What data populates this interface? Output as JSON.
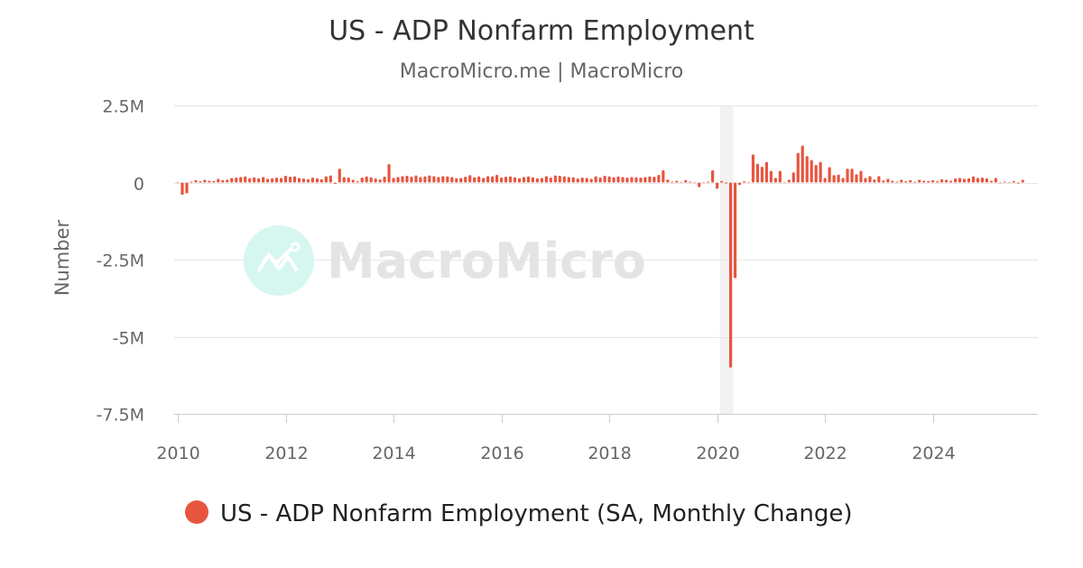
{
  "chart_data": {
    "type": "bar",
    "title": "US - ADP Nonfarm Employment",
    "subtitle": "MacroMicro.me | MacroMicro",
    "ylabel": "Number",
    "xlabel": "",
    "ylim": [
      -7500000,
      2500000
    ],
    "y_ticks": [
      {
        "value": 2500000,
        "label": "2.5M"
      },
      {
        "value": 0,
        "label": "0"
      },
      {
        "value": -2500000,
        "label": "-2.5M"
      },
      {
        "value": -5000000,
        "label": "-5M"
      },
      {
        "value": -7500000,
        "label": "-7.5M"
      }
    ],
    "x_ticks": [
      "2010",
      "2012",
      "2014",
      "2016",
      "2018",
      "2020",
      "2022",
      "2024"
    ],
    "grid": true,
    "legend_placement": "bottom",
    "shaded_period": {
      "start": "2020-02",
      "end": "2020-04"
    },
    "unit_of_values": "thousands",
    "series": [
      {
        "name": "US - ADP Nonfarm Employment (SA, Monthly Change)",
        "color": "#e8553f",
        "monthly_values_by_year": {
          "2010": [
            20,
            -400,
            -350,
            30,
            80,
            40,
            90,
            60,
            50,
            120,
            80,
            90
          ],
          "2011": [
            150,
            160,
            180,
            200,
            140,
            170,
            140,
            180,
            120,
            140,
            160,
            150
          ],
          "2012": [
            220,
            190,
            200,
            150,
            130,
            110,
            160,
            140,
            110,
            200,
            230,
            -40
          ],
          "2013": [
            450,
            180,
            160,
            90,
            40,
            160,
            200,
            170,
            130,
            100,
            190,
            600
          ],
          "2014": [
            150,
            180,
            210,
            220,
            190,
            230,
            180,
            200,
            230,
            210,
            180,
            210
          ],
          "2015": [
            200,
            180,
            140,
            150,
            190,
            240,
            170,
            200,
            150,
            210,
            200,
            250
          ],
          "2016": [
            160,
            190,
            200,
            170,
            140,
            180,
            200,
            170,
            140,
            150,
            210,
            160
          ],
          "2017": [
            230,
            220,
            200,
            180,
            170,
            130,
            160,
            150,
            120,
            200,
            160,
            220
          ],
          "2018": [
            200,
            170,
            200,
            180,
            160,
            180,
            170,
            160,
            180,
            200,
            190,
            250
          ],
          "2019": [
            400,
            100,
            30,
            60,
            20,
            80,
            30,
            10,
            -150,
            20,
            30,
            400
          ],
          "2020": [
            -200,
            50,
            -30,
            -6000,
            -3100,
            -80,
            40,
            20,
            910,
            610,
            510,
            670
          ],
          "2021": [
            380,
            150,
            380,
            0,
            90,
            330,
            960,
            1200,
            860,
            730,
            570,
            670
          ],
          "2022": [
            150,
            500,
            240,
            260,
            150,
            450,
            450,
            270,
            380,
            150,
            210,
            100
          ],
          "2023": [
            210,
            70,
            120,
            60,
            30,
            90,
            40,
            80,
            30,
            90,
            60,
            50
          ],
          "2024": [
            80,
            40,
            110,
            90,
            60,
            130,
            150,
            120,
            140,
            200,
            150,
            160
          ],
          "2025": [
            140,
            60,
            150,
            -20,
            30,
            20,
            50,
            -30,
            90
          ]
        }
      }
    ]
  },
  "watermark": {
    "text": "MacroMicro",
    "circle_color": "#d5f7f0"
  },
  "colors": {
    "bar": "#e8553f",
    "grid": "#e6e6e6",
    "shade": "#f2f2f2"
  }
}
